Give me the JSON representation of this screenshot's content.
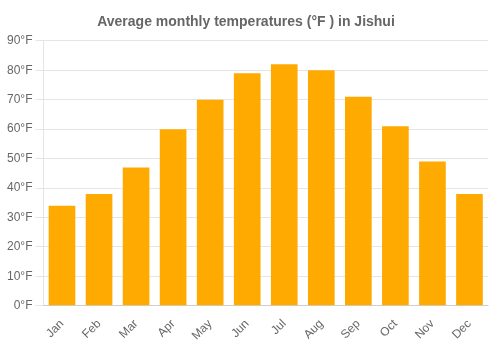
{
  "chart_data": {
    "type": "bar",
    "title": "Average monthly temperatures (°F ) in Jishui",
    "categories": [
      "Jan",
      "Feb",
      "Mar",
      "Apr",
      "May",
      "Jun",
      "Jul",
      "Aug",
      "Sep",
      "Oct",
      "Nov",
      "Dec"
    ],
    "values": [
      34,
      38,
      47,
      60,
      70,
      79,
      82,
      80,
      71,
      61,
      49,
      38
    ],
    "color": "#FFAA00",
    "ylim": [
      0,
      90
    ],
    "yticks": [
      {
        "value": 0,
        "label": "0°F"
      },
      {
        "value": 10,
        "label": "10°F"
      },
      {
        "value": 20,
        "label": "20°F"
      },
      {
        "value": 30,
        "label": "30°F"
      },
      {
        "value": 40,
        "label": "40°F"
      },
      {
        "value": 50,
        "label": "50°F"
      },
      {
        "value": 60,
        "label": "60°F"
      },
      {
        "value": 70,
        "label": "70°F"
      },
      {
        "value": 80,
        "label": "80°F"
      },
      {
        "value": 90,
        "label": "90°F"
      }
    ],
    "grid": true
  }
}
